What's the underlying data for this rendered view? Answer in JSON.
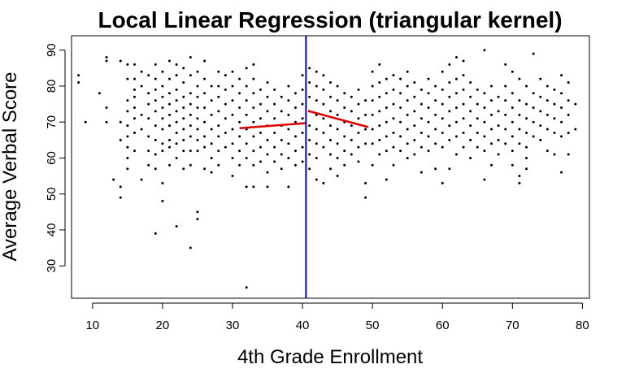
{
  "chart_data": {
    "type": "scatter",
    "title": "Local Linear Regression (triangular kernel)",
    "xlabel": "4th Grade Enrollment",
    "ylabel": "Average Verbal Score",
    "xlim": [
      7,
      81
    ],
    "ylim": [
      21,
      94
    ],
    "x_ticks": [
      10,
      20,
      30,
      40,
      50,
      60,
      70,
      80
    ],
    "y_ticks": [
      30,
      40,
      50,
      60,
      70,
      80,
      90
    ],
    "grid": false,
    "legend": "none",
    "vertical_line": {
      "x": 40.5,
      "color": "#0000cc"
    },
    "fit_lines": [
      {
        "color": "#e00000",
        "x": [
          31.0,
          40.5
        ],
        "y": [
          68.3,
          69.7
        ]
      },
      {
        "color": "#e00000",
        "x": [
          40.8,
          49.4
        ],
        "y": [
          73.1,
          68.6
        ]
      }
    ],
    "point_color": "#000000",
    "points": [
      [
        8,
        83
      ],
      [
        8,
        81
      ],
      [
        9,
        70
      ],
      [
        11,
        78
      ],
      [
        12,
        88
      ],
      [
        12,
        87
      ],
      [
        12,
        74
      ],
      [
        12,
        70
      ],
      [
        13,
        54
      ],
      [
        14,
        87
      ],
      [
        14,
        70
      ],
      [
        14,
        65
      ],
      [
        14,
        52
      ],
      [
        14,
        49
      ],
      [
        15,
        86
      ],
      [
        15,
        82
      ],
      [
        15,
        76
      ],
      [
        15,
        73
      ],
      [
        15,
        69
      ],
      [
        15,
        66
      ],
      [
        15,
        63
      ],
      [
        15,
        60
      ],
      [
        15,
        57
      ],
      [
        16,
        86
      ],
      [
        16,
        82
      ],
      [
        16,
        79
      ],
      [
        16,
        77
      ],
      [
        16,
        74
      ],
      [
        16,
        71
      ],
      [
        16,
        67
      ],
      [
        16,
        62
      ],
      [
        17,
        84
      ],
      [
        17,
        80
      ],
      [
        17,
        72
      ],
      [
        17,
        68
      ],
      [
        17,
        54
      ],
      [
        18,
        83
      ],
      [
        18,
        78
      ],
      [
        18,
        75
      ],
      [
        18,
        71
      ],
      [
        18,
        66
      ],
      [
        18,
        62
      ],
      [
        18,
        58
      ],
      [
        19,
        86
      ],
      [
        19,
        82
      ],
      [
        19,
        79
      ],
      [
        19,
        76
      ],
      [
        19,
        73
      ],
      [
        19,
        69
      ],
      [
        19,
        65
      ],
      [
        19,
        61
      ],
      [
        19,
        57
      ],
      [
        19,
        39
      ],
      [
        20,
        84
      ],
      [
        20,
        80
      ],
      [
        20,
        77
      ],
      [
        20,
        74
      ],
      [
        20,
        71
      ],
      [
        20,
        68
      ],
      [
        20,
        64
      ],
      [
        20,
        62
      ],
      [
        20,
        53
      ],
      [
        20,
        48
      ],
      [
        21,
        87
      ],
      [
        21,
        82
      ],
      [
        21,
        78
      ],
      [
        21,
        75
      ],
      [
        21,
        72
      ],
      [
        21,
        69
      ],
      [
        21,
        65
      ],
      [
        21,
        63
      ],
      [
        21,
        58
      ],
      [
        22,
        86
      ],
      [
        22,
        83
      ],
      [
        22,
        79
      ],
      [
        22,
        76
      ],
      [
        22,
        73
      ],
      [
        22,
        70
      ],
      [
        22,
        67
      ],
      [
        22,
        64
      ],
      [
        22,
        60
      ],
      [
        22,
        41
      ],
      [
        23,
        85
      ],
      [
        23,
        81
      ],
      [
        23,
        77
      ],
      [
        23,
        74
      ],
      [
        23,
        71
      ],
      [
        23,
        68
      ],
      [
        23,
        65
      ],
      [
        23,
        62
      ],
      [
        23,
        57
      ],
      [
        24,
        88
      ],
      [
        24,
        83
      ],
      [
        24,
        78
      ],
      [
        24,
        75
      ],
      [
        24,
        72
      ],
      [
        24,
        69
      ],
      [
        24,
        66
      ],
      [
        24,
        62
      ],
      [
        24,
        58
      ],
      [
        24,
        35
      ],
      [
        25,
        84
      ],
      [
        25,
        80
      ],
      [
        25,
        77
      ],
      [
        25,
        74
      ],
      [
        25,
        71
      ],
      [
        25,
        68
      ],
      [
        25,
        65
      ],
      [
        25,
        62
      ],
      [
        25,
        45
      ],
      [
        25,
        43
      ],
      [
        26,
        87
      ],
      [
        26,
        82
      ],
      [
        26,
        78
      ],
      [
        26,
        74
      ],
      [
        26,
        70
      ],
      [
        26,
        66
      ],
      [
        26,
        63
      ],
      [
        26,
        57
      ],
      [
        27,
        80
      ],
      [
        27,
        76
      ],
      [
        27,
        72
      ],
      [
        27,
        68
      ],
      [
        27,
        64
      ],
      [
        27,
        60
      ],
      [
        27,
        56
      ],
      [
        28,
        84
      ],
      [
        28,
        80
      ],
      [
        28,
        77
      ],
      [
        28,
        73
      ],
      [
        28,
        69
      ],
      [
        28,
        66
      ],
      [
        28,
        62
      ],
      [
        28,
        58
      ],
      [
        29,
        83
      ],
      [
        29,
        79
      ],
      [
        29,
        75
      ],
      [
        29,
        71
      ],
      [
        29,
        67
      ],
      [
        29,
        63
      ],
      [
        30,
        84
      ],
      [
        30,
        80
      ],
      [
        30,
        76
      ],
      [
        30,
        72
      ],
      [
        30,
        68
      ],
      [
        30,
        64
      ],
      [
        30,
        60
      ],
      [
        30,
        55
      ],
      [
        31,
        82
      ],
      [
        31,
        78
      ],
      [
        31,
        74
      ],
      [
        31,
        70
      ],
      [
        31,
        66
      ],
      [
        31,
        62
      ],
      [
        31,
        58
      ],
      [
        32,
        85
      ],
      [
        32,
        80
      ],
      [
        32,
        76
      ],
      [
        32,
        72
      ],
      [
        32,
        68
      ],
      [
        32,
        64
      ],
      [
        32,
        60
      ],
      [
        32,
        52
      ],
      [
        32,
        24
      ],
      [
        33,
        86
      ],
      [
        33,
        82
      ],
      [
        33,
        78
      ],
      [
        33,
        74
      ],
      [
        33,
        70
      ],
      [
        33,
        66
      ],
      [
        33,
        62
      ],
      [
        33,
        58
      ],
      [
        33,
        52
      ],
      [
        34,
        79
      ],
      [
        34,
        75
      ],
      [
        34,
        71
      ],
      [
        34,
        67
      ],
      [
        34,
        63
      ],
      [
        34,
        59
      ],
      [
        35,
        81
      ],
      [
        35,
        77
      ],
      [
        35,
        73
      ],
      [
        35,
        69
      ],
      [
        35,
        65
      ],
      [
        35,
        61
      ],
      [
        35,
        56
      ],
      [
        35,
        52
      ],
      [
        36,
        79
      ],
      [
        36,
        75
      ],
      [
        36,
        71
      ],
      [
        36,
        67
      ],
      [
        36,
        63
      ],
      [
        36,
        59
      ],
      [
        37,
        77
      ],
      [
        37,
        73
      ],
      [
        37,
        69
      ],
      [
        37,
        65
      ],
      [
        37,
        61
      ],
      [
        37,
        57
      ],
      [
        38,
        80
      ],
      [
        38,
        76
      ],
      [
        38,
        72
      ],
      [
        38,
        68
      ],
      [
        38,
        64
      ],
      [
        38,
        60
      ],
      [
        38,
        52
      ],
      [
        39,
        78
      ],
      [
        39,
        74
      ],
      [
        39,
        70
      ],
      [
        39,
        66
      ],
      [
        39,
        62
      ],
      [
        39,
        58
      ],
      [
        40,
        83
      ],
      [
        40,
        79
      ],
      [
        40,
        75
      ],
      [
        40,
        71
      ],
      [
        40,
        67
      ],
      [
        40,
        63
      ],
      [
        40,
        59
      ],
      [
        41,
        85
      ],
      [
        41,
        81
      ],
      [
        41,
        77
      ],
      [
        41,
        73
      ],
      [
        41,
        69
      ],
      [
        41,
        65
      ],
      [
        41,
        61
      ],
      [
        41,
        57
      ],
      [
        42,
        84
      ],
      [
        42,
        80
      ],
      [
        42,
        76
      ],
      [
        42,
        72
      ],
      [
        42,
        68
      ],
      [
        42,
        64
      ],
      [
        42,
        60
      ],
      [
        42,
        54
      ],
      [
        43,
        83
      ],
      [
        43,
        79
      ],
      [
        43,
        75
      ],
      [
        43,
        71
      ],
      [
        43,
        67
      ],
      [
        43,
        63
      ],
      [
        43,
        53
      ],
      [
        44,
        81
      ],
      [
        44,
        77
      ],
      [
        44,
        73
      ],
      [
        44,
        69
      ],
      [
        44,
        65
      ],
      [
        44,
        61
      ],
      [
        44,
        57
      ],
      [
        45,
        80
      ],
      [
        45,
        76
      ],
      [
        45,
        72
      ],
      [
        45,
        68
      ],
      [
        45,
        64
      ],
      [
        45,
        60
      ],
      [
        45,
        55
      ],
      [
        46,
        78
      ],
      [
        46,
        74
      ],
      [
        46,
        70
      ],
      [
        46,
        66
      ],
      [
        46,
        62
      ],
      [
        46,
        58
      ],
      [
        47,
        77
      ],
      [
        47,
        73
      ],
      [
        47,
        69
      ],
      [
        47,
        65
      ],
      [
        47,
        61
      ],
      [
        48,
        79
      ],
      [
        48,
        75
      ],
      [
        48,
        71
      ],
      [
        48,
        67
      ],
      [
        48,
        63
      ],
      [
        48,
        59
      ],
      [
        49,
        76
      ],
      [
        49,
        72
      ],
      [
        49,
        68
      ],
      [
        49,
        64
      ],
      [
        49,
        53
      ],
      [
        49,
        49
      ],
      [
        50,
        84
      ],
      [
        50,
        80
      ],
      [
        50,
        76
      ],
      [
        50,
        72
      ],
      [
        50,
        68
      ],
      [
        50,
        64
      ],
      [
        50,
        58
      ],
      [
        51,
        86
      ],
      [
        51,
        81
      ],
      [
        51,
        77
      ],
      [
        51,
        73
      ],
      [
        51,
        69
      ],
      [
        51,
        65
      ],
      [
        51,
        61
      ],
      [
        52,
        82
      ],
      [
        52,
        78
      ],
      [
        52,
        74
      ],
      [
        52,
        70
      ],
      [
        52,
        66
      ],
      [
        52,
        62
      ],
      [
        52,
        54
      ],
      [
        53,
        83
      ],
      [
        53,
        79
      ],
      [
        53,
        75
      ],
      [
        53,
        71
      ],
      [
        53,
        67
      ],
      [
        53,
        63
      ],
      [
        53,
        58
      ],
      [
        54,
        82
      ],
      [
        54,
        78
      ],
      [
        54,
        74
      ],
      [
        54,
        70
      ],
      [
        54,
        66
      ],
      [
        54,
        62
      ],
      [
        55,
        84
      ],
      [
        55,
        80
      ],
      [
        55,
        76
      ],
      [
        55,
        72
      ],
      [
        55,
        68
      ],
      [
        55,
        64
      ],
      [
        55,
        60
      ],
      [
        56,
        81
      ],
      [
        56,
        77
      ],
      [
        56,
        73
      ],
      [
        56,
        69
      ],
      [
        56,
        65
      ],
      [
        56,
        61
      ],
      [
        57,
        79
      ],
      [
        57,
        75
      ],
      [
        57,
        71
      ],
      [
        57,
        67
      ],
      [
        57,
        63
      ],
      [
        57,
        56
      ],
      [
        58,
        82
      ],
      [
        58,
        78
      ],
      [
        58,
        74
      ],
      [
        58,
        70
      ],
      [
        58,
        66
      ],
      [
        58,
        62
      ],
      [
        59,
        80
      ],
      [
        59,
        76
      ],
      [
        59,
        72
      ],
      [
        59,
        68
      ],
      [
        59,
        64
      ],
      [
        59,
        57
      ],
      [
        60,
        84
      ],
      [
        60,
        79
      ],
      [
        60,
        75
      ],
      [
        60,
        71
      ],
      [
        60,
        67
      ],
      [
        60,
        63
      ],
      [
        60,
        53
      ],
      [
        61,
        86
      ],
      [
        61,
        81
      ],
      [
        61,
        77
      ],
      [
        61,
        73
      ],
      [
        61,
        69
      ],
      [
        61,
        65
      ],
      [
        61,
        57
      ],
      [
        62,
        88
      ],
      [
        62,
        82
      ],
      [
        62,
        78
      ],
      [
        62,
        74
      ],
      [
        62,
        70
      ],
      [
        62,
        66
      ],
      [
        62,
        61
      ],
      [
        63,
        87
      ],
      [
        63,
        83
      ],
      [
        63,
        79
      ],
      [
        63,
        75
      ],
      [
        63,
        71
      ],
      [
        63,
        67
      ],
      [
        63,
        63
      ],
      [
        64,
        81
      ],
      [
        64,
        77
      ],
      [
        64,
        73
      ],
      [
        64,
        69
      ],
      [
        64,
        65
      ],
      [
        64,
        60
      ],
      [
        65,
        79
      ],
      [
        65,
        75
      ],
      [
        65,
        71
      ],
      [
        65,
        67
      ],
      [
        65,
        63
      ],
      [
        66,
        90
      ],
      [
        66,
        78
      ],
      [
        66,
        74
      ],
      [
        66,
        70
      ],
      [
        66,
        66
      ],
      [
        66,
        62
      ],
      [
        66,
        54
      ],
      [
        67,
        80
      ],
      [
        67,
        76
      ],
      [
        67,
        72
      ],
      [
        67,
        68
      ],
      [
        67,
        64
      ],
      [
        67,
        58
      ],
      [
        68,
        77
      ],
      [
        68,
        73
      ],
      [
        68,
        69
      ],
      [
        68,
        65
      ],
      [
        68,
        61
      ],
      [
        69,
        86
      ],
      [
        69,
        80
      ],
      [
        69,
        76
      ],
      [
        69,
        72
      ],
      [
        69,
        68
      ],
      [
        69,
        64
      ],
      [
        70,
        84
      ],
      [
        70,
        78
      ],
      [
        70,
        74
      ],
      [
        70,
        70
      ],
      [
        70,
        66
      ],
      [
        70,
        62
      ],
      [
        70,
        58
      ],
      [
        71,
        82
      ],
      [
        71,
        76
      ],
      [
        71,
        72
      ],
      [
        71,
        68
      ],
      [
        71,
        64
      ],
      [
        71,
        55
      ],
      [
        71,
        53
      ],
      [
        72,
        80
      ],
      [
        72,
        75
      ],
      [
        72,
        71
      ],
      [
        72,
        67
      ],
      [
        72,
        63
      ],
      [
        72,
        60
      ],
      [
        72,
        57
      ],
      [
        73,
        89
      ],
      [
        73,
        78
      ],
      [
        73,
        74
      ],
      [
        73,
        70
      ],
      [
        73,
        66
      ],
      [
        74,
        82
      ],
      [
        74,
        77
      ],
      [
        74,
        73
      ],
      [
        74,
        69
      ],
      [
        74,
        65
      ],
      [
        75,
        80
      ],
      [
        75,
        76
      ],
      [
        75,
        72
      ],
      [
        75,
        68
      ],
      [
        75,
        62
      ],
      [
        76,
        79
      ],
      [
        76,
        75
      ],
      [
        76,
        71
      ],
      [
        76,
        67
      ],
      [
        76,
        61
      ],
      [
        77,
        83
      ],
      [
        77,
        78
      ],
      [
        77,
        74
      ],
      [
        77,
        70
      ],
      [
        77,
        66
      ],
      [
        77,
        56
      ],
      [
        78,
        81
      ],
      [
        78,
        76
      ],
      [
        78,
        72
      ],
      [
        78,
        67
      ],
      [
        78,
        61
      ],
      [
        79,
        75
      ],
      [
        79,
        68
      ]
    ]
  }
}
